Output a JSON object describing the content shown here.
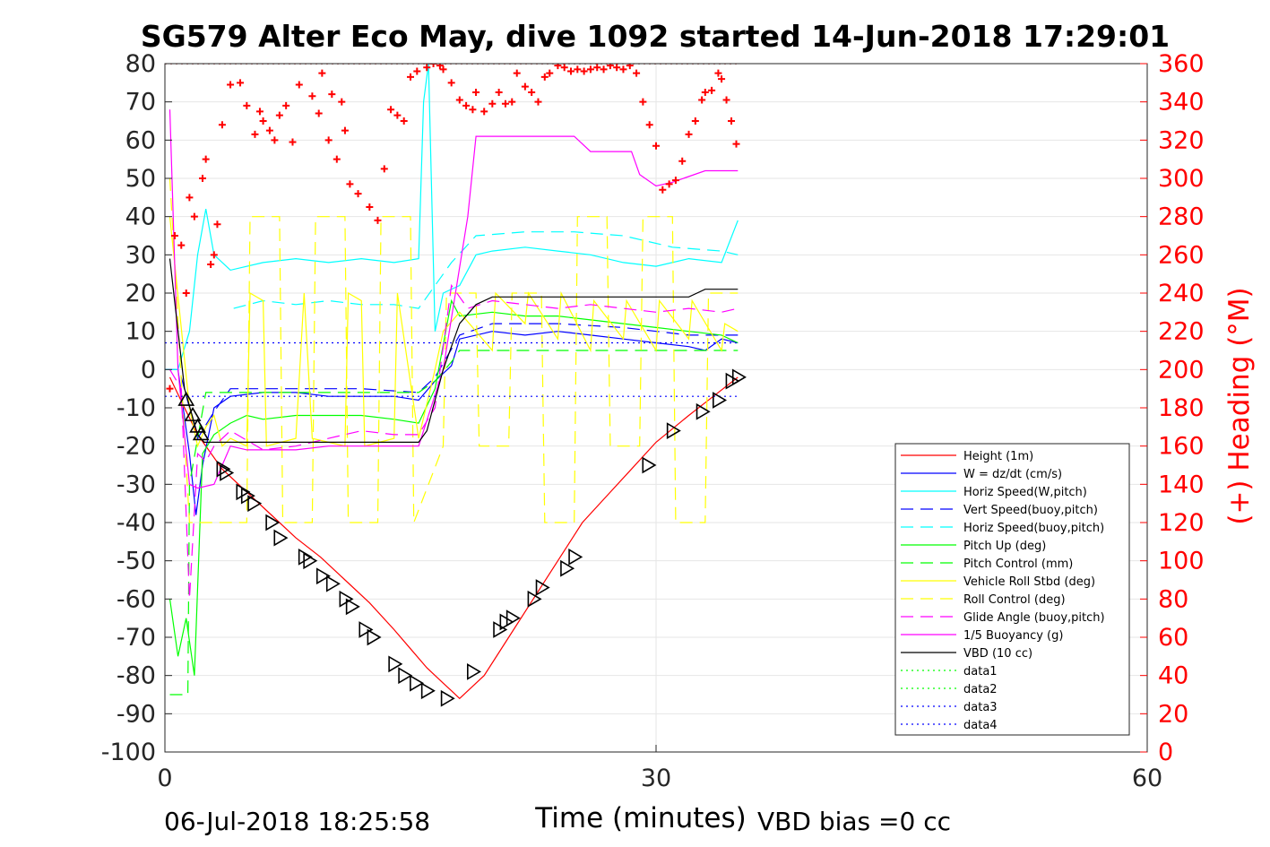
{
  "chart_data": {
    "type": "line",
    "title": "SG579 Alter Eco May, dive 1092 started 14-Jun-2018 17:29:01",
    "xlabel": "Time (minutes)",
    "ylabel_right": "(+) Heading (°M)",
    "xlim": [
      0,
      60
    ],
    "ylim": [
      -100,
      80
    ],
    "ylim_right": [
      0,
      360
    ],
    "xticks": [
      "0",
      "30",
      "60"
    ],
    "yticks": [
      "80",
      "70",
      "60",
      "50",
      "40",
      "30",
      "20",
      "10",
      "0",
      "-10",
      "-20",
      "-30",
      "-40",
      "-50",
      "-60",
      "-70",
      "-80",
      "-90",
      "-100"
    ],
    "yticks_right": [
      "360",
      "340",
      "320",
      "300",
      "280",
      "260",
      "240",
      "220",
      "200",
      "180",
      "160",
      "140",
      "120",
      "100",
      "80",
      "60",
      "40",
      "20",
      "0"
    ],
    "grid": true,
    "legend_position": "lower-right",
    "colors": {
      "height": "#ff0000",
      "w": "#0000ff",
      "horiz_w": "#00ffff",
      "pitch": "#00ff00",
      "roll": "#ffff00",
      "glide": "#ff00ff",
      "vbd": "#000000",
      "heading": "#ff0000",
      "data12": "#00ff00",
      "data34": "#0000ff"
    },
    "legend": [
      {
        "label": "Height (1m)",
        "color": "#ff0000",
        "dash": "solid"
      },
      {
        "label": "W = dz/dt (cm/s)",
        "color": "#0000ff",
        "dash": "solid"
      },
      {
        "label": "Horiz Speed(W,pitch)",
        "color": "#00ffff",
        "dash": "solid"
      },
      {
        "label": "Vert Speed(buoy,pitch)",
        "color": "#0000ff",
        "dash": "dashed"
      },
      {
        "label": "Horiz Speed(buoy,pitch)",
        "color": "#00ffff",
        "dash": "dashed"
      },
      {
        "label": "Pitch Up (deg)",
        "color": "#00ff00",
        "dash": "solid"
      },
      {
        "label": "Pitch Control (mm)",
        "color": "#00ff00",
        "dash": "dashed"
      },
      {
        "label": "Vehicle Roll Stbd (deg)",
        "color": "#ffff00",
        "dash": "solid"
      },
      {
        "label": "Roll Control (deg)",
        "color": "#ffff00",
        "dash": "dashed"
      },
      {
        "label": "Glide Angle (buoy,pitch)",
        "color": "#ff00ff",
        "dash": "dashed"
      },
      {
        "label": "1/5 Buoyancy (g)",
        "color": "#ff00ff",
        "dash": "solid"
      },
      {
        "label": "VBD (10 cc)",
        "color": "#000000",
        "dash": "solid"
      },
      {
        "label": "data1",
        "color": "#00ff00",
        "dash": "dotted"
      },
      {
        "label": "data2",
        "color": "#00ff00",
        "dash": "dotted"
      },
      {
        "label": "data3",
        "color": "#0000ff",
        "dash": "dotted"
      },
      {
        "label": "data4",
        "color": "#0000ff",
        "dash": "dotted"
      }
    ],
    "series": [
      {
        "name": "Height (1m)",
        "x": [
          0.3,
          1.2,
          2.0,
          3.5,
          5.0,
          6.5,
          8.0,
          9.5,
          11.0,
          12.5,
          14.0,
          15.0,
          16.0,
          17.0,
          17.5,
          18.0,
          19.5,
          21.0,
          22.5,
          24.0,
          25.5,
          27.0,
          28.5,
          30.0,
          32.0,
          33.5,
          35.0
        ],
        "y": [
          -2,
          -10,
          -17,
          -26,
          -32,
          -38,
          -44,
          -49,
          -55,
          -61,
          -68,
          -73,
          -78,
          -82,
          -84,
          -86,
          -80,
          -70,
          -60,
          -50,
          -40,
          -33,
          -26,
          -19,
          -12,
          -7,
          -2
        ]
      },
      {
        "name": "W = dz/dt (cm/s)",
        "x": [
          0,
          0.8,
          1.5,
          1.9,
          2.3,
          3,
          4,
          6,
          8,
          10,
          12,
          14,
          15.5,
          16.5,
          17.5,
          18,
          19,
          20,
          22,
          24,
          26,
          28,
          30,
          32,
          33,
          34,
          35
        ],
        "y": [
          0,
          0,
          -22,
          -38,
          -25,
          -10,
          -7,
          -6,
          -6,
          -7,
          -7,
          -7,
          -8,
          -3,
          1,
          8,
          9,
          10,
          9,
          10,
          9,
          8,
          7,
          6,
          5,
          8,
          7
        ]
      },
      {
        "name": "Horiz Speed(W,pitch)",
        "x": [
          0,
          0.8,
          1.5,
          2.0,
          2.5,
          3,
          4,
          6,
          8,
          10,
          12,
          14,
          15.5,
          15.8,
          16.1,
          16.5,
          17,
          18,
          19,
          20,
          22,
          24,
          26,
          28,
          30,
          32,
          34,
          35
        ],
        "y": [
          0,
          0,
          10,
          30,
          42,
          30,
          26,
          28,
          29,
          28,
          29,
          28,
          29,
          70,
          80,
          10,
          20,
          22,
          30,
          31,
          32,
          31,
          30,
          28,
          27,
          29,
          28,
          39
        ]
      },
      {
        "name": "Vert Speed(buoy,pitch)",
        "x": [
          1,
          2,
          3,
          4,
          8,
          12,
          15.5,
          16.5,
          18,
          20,
          24,
          28,
          32,
          35
        ],
        "y": [
          -2,
          -18,
          -11,
          -5,
          -5,
          -5,
          -6,
          -2,
          9,
          12,
          12,
          11,
          9,
          9
        ]
      },
      {
        "name": "Horiz Speed(buoy,pitch)",
        "x": [
          4.2,
          6,
          8,
          10,
          12,
          14,
          15.5,
          17.5,
          19,
          22,
          25,
          28,
          31,
          34,
          35
        ],
        "y": [
          16,
          18,
          17,
          18,
          17,
          17,
          16,
          28,
          35,
          36,
          36,
          35,
          32,
          31,
          30
        ]
      },
      {
        "name": "Pitch Up (deg)",
        "x": [
          0.3,
          0.8,
          1.3,
          1.8,
          2.3,
          3,
          4,
          5,
          6,
          8,
          10,
          12,
          14,
          15.5,
          16.5,
          17.5,
          18,
          20,
          22,
          24,
          26,
          28,
          30,
          32,
          34,
          35
        ],
        "y": [
          -60,
          -75,
          -65,
          -80,
          -22,
          -17,
          -14,
          -12,
          -13,
          -12,
          -12,
          -12,
          -13,
          -14,
          -5,
          18,
          14,
          15,
          14,
          14,
          13,
          12,
          11,
          10,
          9,
          7
        ]
      },
      {
        "name": "Pitch Control (mm)",
        "x": [
          0.3,
          1.4,
          1.5,
          2.5,
          3,
          15.5,
          16.5,
          17.5,
          18,
          35
        ],
        "y": [
          -85,
          -85,
          -30,
          -6,
          -6,
          -6,
          -3,
          2,
          5,
          5
        ]
      },
      {
        "name": "Vehicle Roll Stbd (deg)",
        "x": [
          0.3,
          1.5,
          2,
          2.5,
          3,
          3.5,
          4,
          5,
          5.2,
          6,
          6.2,
          8,
          8.5,
          9,
          11,
          11.2,
          12,
          12.2,
          14,
          14.2,
          15.5,
          16.5,
          17,
          18,
          20,
          20.2,
          22,
          22.2,
          24,
          24.2,
          26,
          26.2,
          28,
          28.2,
          30,
          30.2,
          32,
          32.2,
          34,
          34.2,
          35
        ],
        "y": [
          40,
          -10,
          -20,
          -15,
          -12,
          -20,
          -18,
          -20,
          20,
          18,
          -20,
          -18,
          20,
          -18,
          -20,
          20,
          18,
          -20,
          -18,
          20,
          -18,
          0,
          10,
          15,
          5,
          20,
          12,
          20,
          8,
          20,
          5,
          18,
          8,
          18,
          5,
          18,
          8,
          18,
          5,
          12,
          10
        ]
      },
      {
        "name": "Roll Control (deg)",
        "x": [
          0.3,
          1.5,
          3,
          4,
          5,
          5.2,
          7,
          7.2,
          9,
          9.2,
          11,
          11.2,
          13,
          13.2,
          15,
          15.2,
          17,
          17.2,
          19,
          19.2,
          21,
          21.2,
          23,
          23.2,
          25,
          25.2,
          27,
          27.2,
          29,
          29.2,
          31,
          31.2,
          33,
          33.2,
          35
        ],
        "y": [
          50,
          -40,
          -40,
          -40,
          -40,
          40,
          40,
          -40,
          -40,
          40,
          40,
          -40,
          -40,
          40,
          40,
          -40,
          -20,
          20,
          20,
          -20,
          -20,
          20,
          20,
          -40,
          -40,
          40,
          40,
          -20,
          -20,
          40,
          40,
          -40,
          -40,
          20,
          20
        ]
      },
      {
        "name": "Glide Angle (buoy,pitch)",
        "x": [
          0.3,
          1,
          1.5,
          2,
          2.5,
          3,
          4,
          6,
          8,
          10,
          12,
          14,
          15.5,
          16.5,
          17.5,
          18.5,
          20,
          22,
          24,
          26,
          28,
          30,
          32,
          34,
          35
        ],
        "y": [
          0,
          -5,
          -60,
          -22,
          -24,
          -20,
          -16,
          -21,
          -20,
          -18,
          -16,
          -17,
          -17,
          -10,
          22,
          16,
          18,
          17,
          16,
          17,
          16,
          15,
          16,
          15,
          16
        ]
      },
      {
        "name": "1/5 Buoyancy (g)",
        "x": [
          0.3,
          0.8,
          1.5,
          2,
          3,
          4,
          5,
          6,
          8,
          10,
          12,
          14,
          15.5,
          17,
          18.5,
          19,
          20,
          22,
          24,
          25,
          26,
          27,
          28.5,
          29,
          30,
          31,
          33,
          35
        ],
        "y": [
          68,
          0,
          -30,
          -31,
          -30,
          -20,
          -21,
          -21,
          -21,
          -20,
          -20,
          -20,
          -20,
          0,
          40,
          61,
          61,
          61,
          61,
          61,
          57,
          57,
          57,
          51,
          48,
          49,
          52,
          52
        ]
      },
      {
        "name": "VBD (10 cc)",
        "x": [
          0.3,
          1.2,
          2.0,
          2.4,
          3,
          5,
          10,
          15.5,
          16,
          17,
          18,
          19,
          20,
          25,
          30,
          32,
          33,
          35
        ],
        "y": [
          29,
          -5,
          -17,
          -19,
          -19,
          -19,
          -19,
          -19,
          -16,
          0,
          12,
          17,
          19,
          19,
          19,
          19,
          21,
          21
        ]
      },
      {
        "name": "data1",
        "x": [
          0,
          35
        ],
        "y": [
          80,
          80
        ]
      },
      {
        "name": "data2",
        "x": [
          0,
          35
        ],
        "y": [
          80,
          80
        ]
      },
      {
        "name": "data3",
        "x": [
          0,
          35
        ],
        "y": [
          7,
          7
        ]
      },
      {
        "name": "data4",
        "x": [
          0,
          35
        ],
        "y": [
          -7,
          -7
        ]
      }
    ],
    "heading_points": {
      "x": [
        0.3,
        0.6,
        1.0,
        1.3,
        1.5,
        1.8,
        2.3,
        2.5,
        2.8,
        3.0,
        3.2,
        3.5,
        4,
        4.6,
        5,
        5.5,
        5.8,
        6,
        6.4,
        6.7,
        7,
        7.4,
        7.8,
        8.2,
        9,
        9.4,
        9.6,
        10,
        10.2,
        10.5,
        10.8,
        11,
        11.3,
        11.8,
        12.5,
        13,
        13.4,
        13.8,
        14.2,
        14.6,
        15,
        15.4,
        16,
        16.4,
        16.8,
        17,
        17.5,
        18,
        18.4,
        18.8,
        19,
        19.5,
        20,
        20.4,
        20.8,
        21.2,
        21.5,
        22,
        22.4,
        22.8,
        23.2,
        23.5,
        24,
        24.4,
        24.8,
        25.2,
        25.6,
        26,
        26.4,
        26.8,
        27.2,
        27.6,
        28,
        28.4,
        28.8,
        29.2,
        29.6,
        30,
        30.4,
        30.8,
        31.2,
        31.6,
        32,
        32.4,
        32.8,
        33,
        33.4,
        33.8,
        34,
        34.3,
        34.6,
        34.9
      ],
      "y": [
        190,
        270,
        265,
        240,
        290,
        280,
        300,
        310,
        255,
        260,
        276,
        328,
        349,
        350,
        338,
        323,
        335,
        330,
        325,
        320,
        333,
        338,
        319,
        349,
        343,
        334,
        355,
        320,
        344,
        310,
        340,
        325,
        297,
        292,
        285,
        278,
        305,
        336,
        333,
        330,
        353,
        356,
        358,
        360,
        359,
        357,
        350,
        341,
        338,
        336,
        345,
        335,
        339,
        345,
        339,
        340,
        355,
        348,
        345,
        340,
        353,
        355,
        359,
        358,
        356,
        357,
        356,
        357,
        358,
        357,
        359,
        358,
        357,
        359,
        355,
        340,
        328,
        317,
        294,
        297,
        299,
        309,
        323,
        330,
        341,
        345,
        346,
        355,
        352,
        341,
        330,
        318
      ],
      "color": "#ff0000"
    },
    "markers": {
      "descent_x": [
        1.3,
        1.7,
        2.0,
        2.2,
        3.5,
        3.7,
        4.7,
        5.0,
        5.4,
        6.5,
        7.0,
        8.5,
        8.8,
        9.6,
        10.2,
        11.0,
        11.4,
        12.2,
        12.7,
        14.0,
        14.6,
        15.3,
        16.0,
        17.2
      ],
      "descent_y": [
        -8,
        -12,
        -15,
        -17,
        -26,
        -27,
        -32,
        -33,
        -35,
        -40,
        -44,
        -49,
        -50,
        -54,
        -56,
        -60,
        -62,
        -68,
        -70,
        -77,
        -80,
        -82,
        -84,
        -86
      ],
      "ascent_x": [
        18.8,
        20.4,
        20.8,
        21.2,
        22.5,
        23.0,
        24.5,
        25.0,
        29.5,
        31.0,
        32.8,
        33.8,
        34.6,
        35.0
      ],
      "ascent_y": [
        -79,
        -68,
        -66,
        -65,
        -60,
        -57,
        -52,
        -49,
        -25,
        -16,
        -11,
        -8,
        -3,
        -2
      ]
    }
  },
  "footer": {
    "date": "06-Jul-2018 18:25:58",
    "vbd_bias": "VBD bias =0 cc"
  }
}
